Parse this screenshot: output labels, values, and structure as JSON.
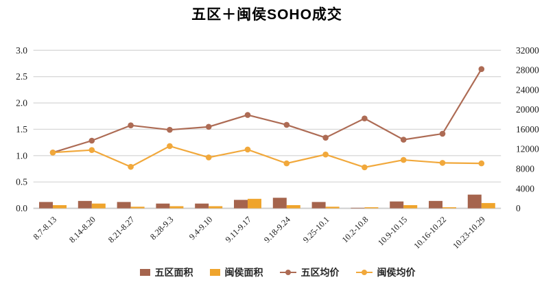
{
  "title": "五区＋闽侯SOHO成交",
  "chart_data": {
    "type": "combo-bar-line",
    "title": "五区＋闽侯SOHO成交",
    "categories": [
      "8.7-8.13",
      "8.14-8.20",
      "8.21-8.27",
      "8.28-9.3",
      "9.4-9.10",
      "9.11-9.17",
      "9.18-9.24",
      "9.25-10.1",
      "10.2-10.8",
      "10.9-10.15",
      "10.16-10.22",
      "10.23-10.29"
    ],
    "series": [
      {
        "name": "五区面积",
        "type": "bar",
        "axis": "left",
        "color": "#A5644D",
        "values": [
          0.12,
          0.14,
          0.12,
          0.09,
          0.09,
          0.16,
          0.2,
          0.12,
          0.01,
          0.13,
          0.14,
          0.26
        ]
      },
      {
        "name": "闽侯面积",
        "type": "bar",
        "axis": "left",
        "color": "#EFA42C",
        "values": [
          0.06,
          0.09,
          0.03,
          0.04,
          0.04,
          0.18,
          0.06,
          0.03,
          0.02,
          0.06,
          0.02,
          0.1
        ]
      },
      {
        "name": "五区均价",
        "type": "line",
        "axis": "right",
        "color": "#AD6B54",
        "values": [
          11300,
          13700,
          16800,
          15900,
          16500,
          18900,
          16900,
          14300,
          18200,
          13900,
          15100,
          28200
        ]
      },
      {
        "name": "闽侯均价",
        "type": "line",
        "axis": "right",
        "color": "#F1A83B",
        "values": [
          11300,
          11800,
          8400,
          12600,
          10300,
          11900,
          9100,
          10900,
          8300,
          9800,
          9200,
          9100
        ]
      }
    ],
    "left_axis": {
      "min": 0,
      "max": 3.0,
      "step": 0.5,
      "tick_labels": [
        "0.0",
        "0.5",
        "1.0",
        "1.5",
        "2.0",
        "2.5",
        "3.0"
      ]
    },
    "right_axis": {
      "min": 0,
      "max": 32000,
      "step": 4000,
      "tick_labels": [
        "0",
        "4000",
        "8000",
        "12000",
        "16000",
        "20000",
        "24000",
        "28000",
        "32000"
      ]
    },
    "grid": true,
    "legend_position": "bottom",
    "colors": {
      "gridline": "#d9d9d9",
      "axis_line": "#cfcfcf",
      "text": "#1a1a1a"
    }
  }
}
